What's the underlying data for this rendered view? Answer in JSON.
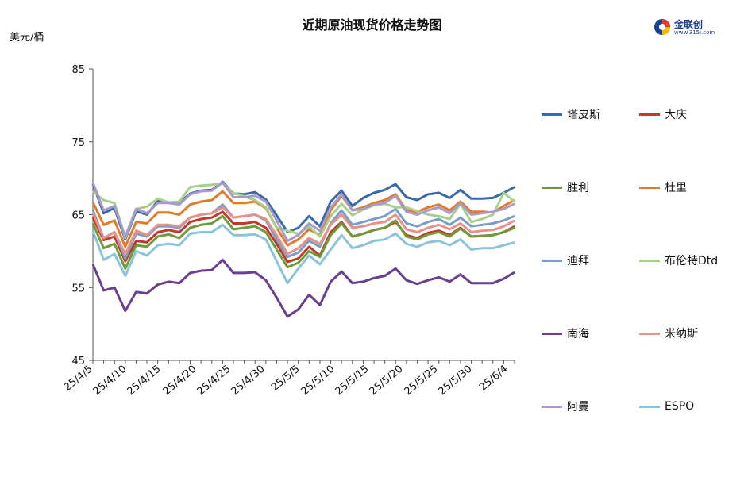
{
  "title": "近期原油现货价格走势图",
  "unit_label": "美元/桶",
  "logo": {
    "name": "金联创",
    "sub": "www.315i.com"
  },
  "chart_data": {
    "type": "line",
    "title": "近期原油现货价格走势图",
    "ylabel": "美元/桶",
    "ylim": [
      45,
      85
    ],
    "yticks": [
      45,
      55,
      65,
      75,
      85
    ],
    "x": [
      "25/4/5",
      "25/4/7",
      "25/4/8",
      "25/4/9",
      "25/4/10",
      "25/4/11",
      "25/4/14",
      "25/4/15",
      "25/4/16",
      "25/4/17",
      "25/4/21",
      "25/4/22",
      "25/4/23",
      "25/4/24",
      "25/4/25",
      "25/4/28",
      "25/4/29",
      "25/4/30",
      "25/5/6",
      "25/5/7",
      "25/5/8",
      "25/5/9",
      "25/5/12",
      "25/5/13",
      "25/5/14",
      "25/5/15",
      "25/5/16",
      "25/5/19",
      "25/5/20",
      "25/5/21",
      "25/5/22",
      "25/5/23",
      "25/5/26",
      "25/5/27",
      "25/5/28",
      "25/5/29",
      "25/5/30",
      "25/6/3",
      "25/6/4",
      "25/6/5"
    ],
    "xtick_labels": [
      "25/4/5",
      "25/4/10",
      "25/4/15",
      "25/4/20",
      "25/4/25",
      "25/4/30",
      "25/5/5",
      "25/5/10",
      "25/5/15",
      "25/5/20",
      "25/5/25",
      "25/5/30",
      "25/6/4"
    ],
    "grid": false,
    "legend_position": "right",
    "series": [
      {
        "name": "塔皮斯",
        "color": "#3a6aa8",
        "values": [
          69.2,
          65.2,
          65.9,
          61.6,
          65.5,
          65.0,
          66.9,
          66.7,
          66.6,
          67.9,
          68.3,
          68.4,
          69.5,
          67.9,
          67.8,
          68.1,
          67.1,
          64.9,
          62.6,
          63.2,
          64.8,
          63.4,
          66.8,
          68.3,
          66.2,
          67.3,
          68.0,
          68.4,
          69.2,
          67.4,
          67.0,
          67.8,
          68.0,
          67.3,
          68.4,
          67.2,
          67.2,
          67.3,
          68.0,
          68.8
        ]
      },
      {
        "name": "大庆",
        "color": "#c0392b",
        "values": [
          64.6,
          61.5,
          62.0,
          58.6,
          61.4,
          61.2,
          62.6,
          62.9,
          62.6,
          64.0,
          64.4,
          64.6,
          65.4,
          63.8,
          63.8,
          64.0,
          63.2,
          61.0,
          58.5,
          59.0,
          60.6,
          59.4,
          62.6,
          64.0,
          62.0,
          62.4,
          62.9,
          63.2,
          64.0,
          62.2,
          61.8,
          62.5,
          62.8,
          62.2,
          63.2,
          62.0,
          62.1,
          62.2,
          62.6,
          63.4
        ]
      },
      {
        "name": "胜利",
        "color": "#6f9a3a",
        "values": [
          63.8,
          60.4,
          61.0,
          57.6,
          60.8,
          60.6,
          62.0,
          62.3,
          61.8,
          63.2,
          63.6,
          63.8,
          64.8,
          63.0,
          63.2,
          63.4,
          62.6,
          60.2,
          57.8,
          58.4,
          60.0,
          59.2,
          62.2,
          63.8,
          62.0,
          62.4,
          62.9,
          63.2,
          64.2,
          62.0,
          61.6,
          62.3,
          62.6,
          62.0,
          63.1,
          62.0,
          62.1,
          62.2,
          62.6,
          63.2
        ]
      },
      {
        "name": "杜里",
        "color": "#e07b2a",
        "values": [
          66.7,
          63.6,
          64.2,
          60.6,
          64.0,
          63.8,
          65.3,
          65.3,
          65.0,
          66.4,
          66.8,
          67.0,
          68.2,
          66.6,
          66.6,
          66.8,
          65.9,
          63.2,
          60.8,
          61.6,
          63.0,
          62.2,
          65.6,
          67.6,
          65.6,
          66.0,
          66.6,
          67.0,
          67.8,
          65.6,
          65.4,
          66.0,
          66.4,
          65.6,
          66.8,
          65.4,
          65.4,
          65.3,
          66.2,
          67.0
        ]
      },
      {
        "name": "迪拜",
        "color": "#7a9ec8",
        "values": [
          65.6,
          61.8,
          62.6,
          59.0,
          62.4,
          62.0,
          63.4,
          63.4,
          63.2,
          64.6,
          65.0,
          65.2,
          66.4,
          64.6,
          64.8,
          65.0,
          64.2,
          61.6,
          59.2,
          59.8,
          61.4,
          60.6,
          63.8,
          65.6,
          63.6,
          64.0,
          64.4,
          64.8,
          65.8,
          63.8,
          63.4,
          64.0,
          64.4,
          63.6,
          64.6,
          63.4,
          63.6,
          63.8,
          64.2,
          64.8
        ]
      },
      {
        "name": "布伦特Dtd",
        "color": "#a8d08d",
        "values": [
          68.2,
          67.0,
          66.6,
          61.8,
          65.8,
          66.1,
          67.2,
          66.7,
          66.8,
          68.8,
          69.0,
          69.1,
          69.3,
          68.0,
          67.5,
          67.0,
          66.0,
          63.2,
          62.8,
          62.4,
          63.4,
          62.0,
          64.8,
          66.5,
          64.9,
          65.7,
          66.3,
          66.5,
          66.0,
          66.0,
          65.5,
          65.0,
          64.8,
          64.4,
          66.5,
          64.0,
          64.4,
          65.0,
          68.0,
          66.8
        ]
      },
      {
        "name": "南海",
        "color": "#6b3f8f",
        "values": [
          58.2,
          54.6,
          55.0,
          51.8,
          54.4,
          54.2,
          55.4,
          55.8,
          55.6,
          57.0,
          57.3,
          57.4,
          58.8,
          57.0,
          57.0,
          57.1,
          56.0,
          53.6,
          51.0,
          52.0,
          54.0,
          52.6,
          55.8,
          57.2,
          55.6,
          55.8,
          56.3,
          56.6,
          57.6,
          56.0,
          55.5,
          56.0,
          56.4,
          55.8,
          56.8,
          55.6,
          55.6,
          55.6,
          56.2,
          57.1
        ]
      },
      {
        "name": "米纳斯",
        "color": "#e8908a",
        "values": [
          65.2,
          61.8,
          62.6,
          59.6,
          62.8,
          62.2,
          63.6,
          63.6,
          63.4,
          64.6,
          65.0,
          65.2,
          66.0,
          64.6,
          64.8,
          65.0,
          64.4,
          62.2,
          59.6,
          60.4,
          61.8,
          61.0,
          63.6,
          65.0,
          63.2,
          63.4,
          63.8,
          64.0,
          65.0,
          63.0,
          62.6,
          63.2,
          63.6,
          63.0,
          63.8,
          62.6,
          62.8,
          62.9,
          63.4,
          64.2
        ]
      },
      {
        "name": "阿曼",
        "color": "#a99ac9",
        "values": [
          69.4,
          65.6,
          66.2,
          62.0,
          65.8,
          65.2,
          66.6,
          66.6,
          66.4,
          67.8,
          68.2,
          68.3,
          69.4,
          67.4,
          67.4,
          67.6,
          66.8,
          64.2,
          61.4,
          62.2,
          63.8,
          62.8,
          66.0,
          67.8,
          65.6,
          65.8,
          66.4,
          66.6,
          67.6,
          65.4,
          65.0,
          65.6,
          66.0,
          65.2,
          66.6,
          65.0,
          65.2,
          65.4,
          65.8,
          66.5
        ]
      },
      {
        "name": "ESPO",
        "color": "#8cc3dc",
        "values": [
          62.8,
          58.8,
          59.6,
          56.6,
          60.0,
          59.4,
          60.8,
          61.0,
          60.8,
          62.4,
          62.6,
          62.6,
          63.6,
          62.2,
          62.2,
          62.3,
          61.6,
          58.6,
          55.6,
          57.6,
          59.4,
          58.2,
          60.2,
          62.2,
          60.4,
          60.8,
          61.4,
          61.6,
          62.4,
          61.0,
          60.6,
          61.2,
          61.4,
          60.8,
          61.6,
          60.2,
          60.4,
          60.4,
          60.8,
          61.2
        ]
      }
    ]
  }
}
